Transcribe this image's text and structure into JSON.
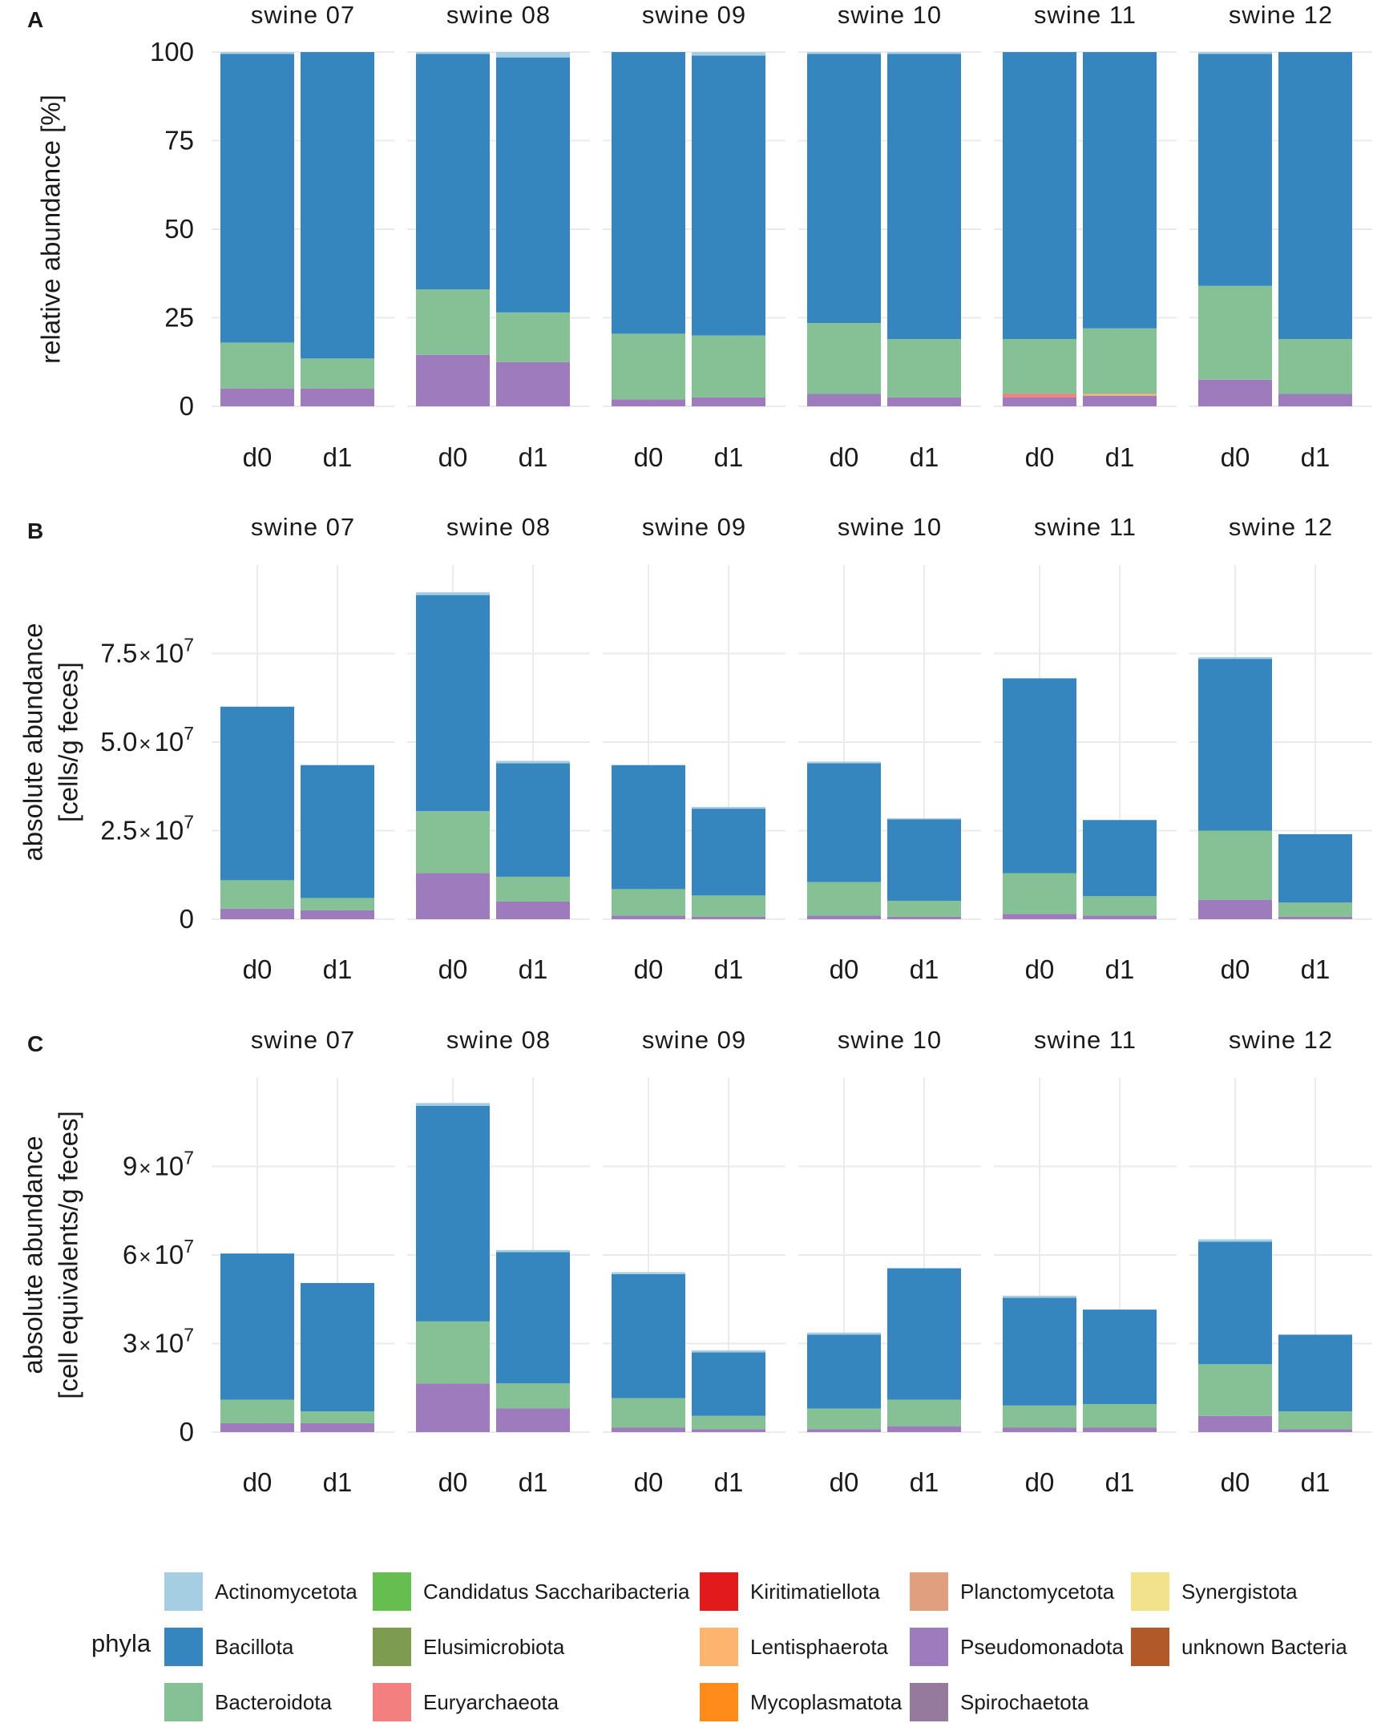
{
  "legend": {
    "title": "phyla",
    "items": [
      {
        "name": "Actinomycetota",
        "color": "#a6cee3"
      },
      {
        "name": "Bacillota",
        "color": "#3586be"
      },
      {
        "name": "Bacteroidota",
        "color": "#86c196"
      },
      {
        "name": "Candidatus Saccharibacteria",
        "color": "#66bd50"
      },
      {
        "name": "Elusimicrobiota",
        "color": "#7d9c50"
      },
      {
        "name": "Euryarchaeota",
        "color": "#f47f7f"
      },
      {
        "name": "Kiritimatiellota",
        "color": "#e31a1c"
      },
      {
        "name": "Lentisphaerota",
        "color": "#fdb46e"
      },
      {
        "name": "Mycoplasmatota",
        "color": "#ff8c1a"
      },
      {
        "name": "Planctomycetota",
        "color": "#e0a080"
      },
      {
        "name": "Pseudomonadota",
        "color": "#9e7bbd"
      },
      {
        "name": "Spirochaetota",
        "color": "#957a9d"
      },
      {
        "name": "Synergistota",
        "color": "#f2e28c"
      },
      {
        "name": "unknown Bacteria",
        "color": "#b15928"
      }
    ]
  },
  "chart_data": [
    {
      "type": "bar",
      "stacked": true,
      "panel_label": "A",
      "ylabel": [
        "relative abundance [%]"
      ],
      "ylim": [
        0,
        100
      ],
      "yticks": [
        {
          "value": 0,
          "label": "0"
        },
        {
          "value": 25,
          "label": "25"
        },
        {
          "value": 50,
          "label": "50"
        },
        {
          "value": 75,
          "label": "75"
        },
        {
          "value": 100,
          "label": "100"
        }
      ],
      "facets": [
        {
          "title": "swine 07",
          "bars": [
            {
              "label": "d0",
              "segments": {
                "Pseudomonadota": 5,
                "Bacteroidota": 13,
                "Bacillota": 81.5,
                "Actinomycetota": 0.5
              }
            },
            {
              "label": "d1",
              "segments": {
                "Pseudomonadota": 5,
                "Bacteroidota": 8.5,
                "Bacillota": 86.5
              }
            }
          ]
        },
        {
          "title": "swine 08",
          "bars": [
            {
              "label": "d0",
              "segments": {
                "Pseudomonadota": 14.5,
                "Bacteroidota": 18.5,
                "Bacillota": 66.5,
                "Actinomycetota": 0.5
              }
            },
            {
              "label": "d1",
              "segments": {
                "Pseudomonadota": 12.5,
                "Bacteroidota": 14,
                "Bacillota": 72,
                "Actinomycetota": 1.5
              }
            }
          ]
        },
        {
          "title": "swine 09",
          "bars": [
            {
              "label": "d0",
              "segments": {
                "Pseudomonadota": 2,
                "Bacteroidota": 18.5,
                "Bacillota": 79.5
              }
            },
            {
              "label": "d1",
              "segments": {
                "Pseudomonadota": 2.5,
                "Bacteroidota": 17.5,
                "Bacillota": 79,
                "Actinomycetota": 1
              }
            }
          ]
        },
        {
          "title": "swine 10",
          "bars": [
            {
              "label": "d0",
              "segments": {
                "Pseudomonadota": 3.5,
                "Bacteroidota": 20,
                "Bacillota": 76,
                "Actinomycetota": 0.5
              }
            },
            {
              "label": "d1",
              "segments": {
                "Pseudomonadota": 2.5,
                "Bacteroidota": 16.5,
                "Bacillota": 80.5,
                "Actinomycetota": 0.5
              }
            }
          ]
        },
        {
          "title": "swine 11",
          "bars": [
            {
              "label": "d0",
              "segments": {
                "Pseudomonadota": 2.5,
                "Euryarchaeota": 1,
                "Bacteroidota": 15.5,
                "Bacillota": 81
              }
            },
            {
              "label": "d1",
              "segments": {
                "Pseudomonadota": 3,
                "Lentisphaerota": 0.5,
                "Bacteroidota": 18.5,
                "Bacillota": 78
              }
            }
          ]
        },
        {
          "title": "swine 12",
          "bars": [
            {
              "label": "d0",
              "segments": {
                "Pseudomonadota": 7.5,
                "Bacteroidota": 26.5,
                "Bacillota": 65.5,
                "Actinomycetota": 0.5
              }
            },
            {
              "label": "d1",
              "segments": {
                "Pseudomonadota": 3.5,
                "Bacteroidota": 15.5,
                "Bacillota": 81
              }
            }
          ]
        }
      ]
    },
    {
      "type": "bar",
      "stacked": true,
      "panel_label": "B",
      "ylabel": [
        "absolute abundance",
        "[cells/g feces]"
      ],
      "ylim": [
        0,
        100000000
      ],
      "yticks": [
        {
          "value": 0,
          "label": "0"
        },
        {
          "value": 25000000,
          "label": "2.5",
          "exponent": "7"
        },
        {
          "value": 50000000,
          "label": "5.0",
          "exponent": "7"
        },
        {
          "value": 75000000,
          "label": "7.5",
          "exponent": "7"
        }
      ],
      "facets": [
        {
          "title": "swine 07",
          "bars": [
            {
              "label": "d0",
              "segments": {
                "Pseudomonadota": 3000000,
                "Bacteroidota": 8000000,
                "Bacillota": 49000000
              }
            },
            {
              "label": "d1",
              "segments": {
                "Pseudomonadota": 2500000,
                "Bacteroidota": 3500000,
                "Bacillota": 37500000
              }
            }
          ]
        },
        {
          "title": "swine 08",
          "bars": [
            {
              "label": "d0",
              "segments": {
                "Pseudomonadota": 13000000,
                "Bacteroidota": 17500000,
                "Bacillota": 61000000,
                "Actinomycetota": 800000
              }
            },
            {
              "label": "d1",
              "segments": {
                "Pseudomonadota": 5000000,
                "Bacteroidota": 7000000,
                "Bacillota": 32000000,
                "Actinomycetota": 700000
              }
            }
          ]
        },
        {
          "title": "swine 09",
          "bars": [
            {
              "label": "d0",
              "segments": {
                "Pseudomonadota": 1000000,
                "Bacteroidota": 7500000,
                "Bacillota": 35000000
              }
            },
            {
              "label": "d1",
              "segments": {
                "Pseudomonadota": 700000,
                "Bacteroidota": 6000000,
                "Bacillota": 24500000,
                "Actinomycetota": 500000
              }
            }
          ]
        },
        {
          "title": "swine 10",
          "bars": [
            {
              "label": "d0",
              "segments": {
                "Pseudomonadota": 1000000,
                "Bacteroidota": 9500000,
                "Bacillota": 33500000,
                "Actinomycetota": 500000
              }
            },
            {
              "label": "d1",
              "segments": {
                "Pseudomonadota": 700000,
                "Bacteroidota": 4500000,
                "Bacillota": 23000000,
                "Actinomycetota": 300000
              }
            }
          ]
        },
        {
          "title": "swine 11",
          "bars": [
            {
              "label": "d0",
              "segments": {
                "Pseudomonadota": 1500000,
                "Bacteroidota": 11500000,
                "Bacillota": 55000000
              }
            },
            {
              "label": "d1",
              "segments": {
                "Pseudomonadota": 1000000,
                "Bacteroidota": 5500000,
                "Bacillota": 21500000
              }
            }
          ]
        },
        {
          "title": "swine 12",
          "bars": [
            {
              "label": "d0",
              "segments": {
                "Pseudomonadota": 5500000,
                "Bacteroidota": 19500000,
                "Bacillota": 48500000,
                "Actinomycetota": 500000
              }
            },
            {
              "label": "d1",
              "segments": {
                "Pseudomonadota": 700000,
                "Bacteroidota": 4000000,
                "Bacillota": 19300000
              }
            }
          ]
        }
      ]
    },
    {
      "type": "bar",
      "stacked": true,
      "panel_label": "C",
      "ylabel": [
        "absolute abundance",
        "[cell equivalents/g feces]"
      ],
      "ylim": [
        0,
        120000000
      ],
      "yticks": [
        {
          "value": 0,
          "label": "0"
        },
        {
          "value": 30000000,
          "label": "3",
          "exponent": "7"
        },
        {
          "value": 60000000,
          "label": "6",
          "exponent": "7"
        },
        {
          "value": 90000000,
          "label": "9",
          "exponent": "7"
        }
      ],
      "facets": [
        {
          "title": "swine 07",
          "bars": [
            {
              "label": "d0",
              "segments": {
                "Pseudomonadota": 3000000,
                "Bacteroidota": 8000000,
                "Bacillota": 49500000
              }
            },
            {
              "label": "d1",
              "segments": {
                "Pseudomonadota": 3000000,
                "Bacteroidota": 4000000,
                "Bacillota": 43500000
              }
            }
          ]
        },
        {
          "title": "swine 08",
          "bars": [
            {
              "label": "d0",
              "segments": {
                "Pseudomonadota": 16500000,
                "Bacteroidota": 21000000,
                "Bacillota": 73000000,
                "Actinomycetota": 1000000
              }
            },
            {
              "label": "d1",
              "segments": {
                "Pseudomonadota": 8000000,
                "Bacteroidota": 8500000,
                "Bacillota": 44500000,
                "Actinomycetota": 700000
              }
            }
          ]
        },
        {
          "title": "swine 09",
          "bars": [
            {
              "label": "d0",
              "segments": {
                "Pseudomonadota": 1500000,
                "Bacteroidota": 10000000,
                "Bacillota": 42000000,
                "Actinomycetota": 700000
              }
            },
            {
              "label": "d1",
              "segments": {
                "Pseudomonadota": 1000000,
                "Bacteroidota": 4500000,
                "Bacillota": 21500000,
                "Actinomycetota": 700000
              }
            }
          ]
        },
        {
          "title": "swine 10",
          "bars": [
            {
              "label": "d0",
              "segments": {
                "Pseudomonadota": 1000000,
                "Bacteroidota": 7000000,
                "Bacillota": 25000000,
                "Actinomycetota": 700000
              }
            },
            {
              "label": "d1",
              "segments": {
                "Pseudomonadota": 2000000,
                "Bacteroidota": 9000000,
                "Bacillota": 44500000
              }
            }
          ]
        },
        {
          "title": "swine 11",
          "bars": [
            {
              "label": "d0",
              "segments": {
                "Pseudomonadota": 1500000,
                "Bacteroidota": 7500000,
                "Bacillota": 36500000,
                "Actinomycetota": 700000
              }
            },
            {
              "label": "d1",
              "segments": {
                "Pseudomonadota": 1500000,
                "Bacteroidota": 8000000,
                "Bacillota": 32000000
              }
            }
          ]
        },
        {
          "title": "swine 12",
          "bars": [
            {
              "label": "d0",
              "segments": {
                "Pseudomonadota": 5500000,
                "Bacteroidota": 17500000,
                "Bacillota": 41500000,
                "Actinomycetota": 800000
              }
            },
            {
              "label": "d1",
              "segments": {
                "Pseudomonadota": 1000000,
                "Bacteroidota": 6000000,
                "Bacillota": 26000000
              }
            }
          ]
        }
      ]
    }
  ]
}
